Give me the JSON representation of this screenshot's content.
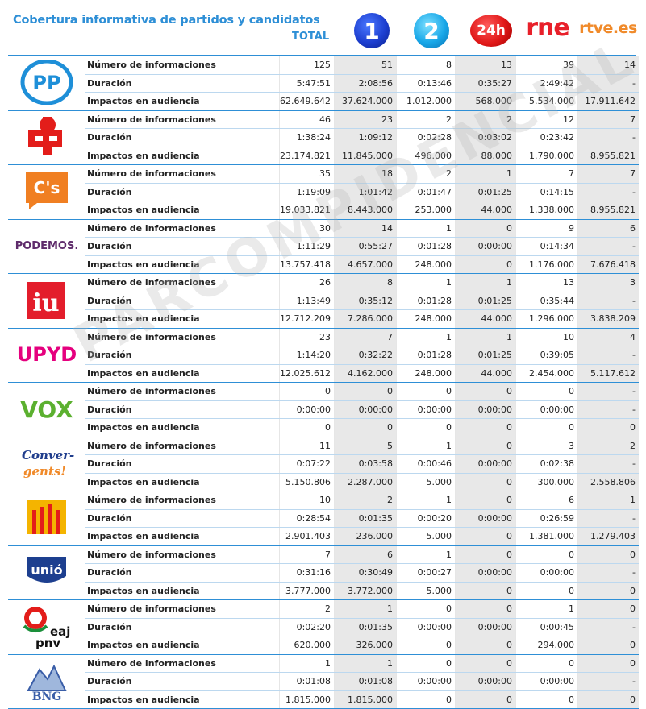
{
  "title": "Cobertura informativa de partidos y candidatos",
  "columns": {
    "total": "TOTAL",
    "ch1": "1",
    "ch2": "2",
    "ch24": "24h",
    "rne": "rne",
    "rtve": "rtve.es"
  },
  "row_labels": [
    "Número de informaciones",
    "Duración",
    "Impactos en audiencia"
  ],
  "watermark": "PARCOMPIDENCIAL",
  "parties": [
    {
      "logo": "pp-logo",
      "logo_text": "PP",
      "rows": [
        [
          "125",
          "51",
          "8",
          "13",
          "39",
          "14"
        ],
        [
          "5:47:51",
          "2:08:56",
          "0:13:46",
          "0:35:27",
          "2:49:42",
          "-"
        ],
        [
          "62.649.642",
          "37.624.000",
          "1.012.000",
          "568.000",
          "5.534.000",
          "17.911.642"
        ]
      ]
    },
    {
      "logo": "psoe-logo",
      "logo_text": "",
      "rows": [
        [
          "46",
          "23",
          "2",
          "2",
          "12",
          "7"
        ],
        [
          "1:38:24",
          "1:09:12",
          "0:02:28",
          "0:03:02",
          "0:23:42",
          "-"
        ],
        [
          "23.174.821",
          "11.845.000",
          "496.000",
          "88.000",
          "1.790.000",
          "8.955.821"
        ]
      ]
    },
    {
      "logo": "cs-logo",
      "logo_text": "C's",
      "rows": [
        [
          "35",
          "18",
          "2",
          "1",
          "7",
          "7"
        ],
        [
          "1:19:09",
          "1:01:42",
          "0:01:47",
          "0:01:25",
          "0:14:15",
          "-"
        ],
        [
          "19.033.821",
          "8.443.000",
          "253.000",
          "44.000",
          "1.338.000",
          "8.955.821"
        ]
      ]
    },
    {
      "logo": "podemos-logo",
      "logo_text": "PODEMOS.",
      "rows": [
        [
          "30",
          "14",
          "1",
          "0",
          "9",
          "6"
        ],
        [
          "1:11:29",
          "0:55:27",
          "0:01:28",
          "0:00:00",
          "0:14:34",
          "-"
        ],
        [
          "13.757.418",
          "4.657.000",
          "248.000",
          "0",
          "1.176.000",
          "7.676.418"
        ]
      ]
    },
    {
      "logo": "iu-logo",
      "logo_text": "iu",
      "rows": [
        [
          "26",
          "8",
          "1",
          "1",
          "13",
          "3"
        ],
        [
          "1:13:49",
          "0:35:12",
          "0:01:28",
          "0:01:25",
          "0:35:44",
          "-"
        ],
        [
          "12.712.209",
          "7.286.000",
          "248.000",
          "44.000",
          "1.296.000",
          "3.838.209"
        ]
      ]
    },
    {
      "logo": "upyd-logo",
      "logo_text": "UPYD",
      "rows": [
        [
          "23",
          "7",
          "1",
          "1",
          "10",
          "4"
        ],
        [
          "1:14:20",
          "0:32:22",
          "0:01:28",
          "0:01:25",
          "0:39:05",
          "-"
        ],
        [
          "12.025.612",
          "4.162.000",
          "248.000",
          "44.000",
          "2.454.000",
          "5.117.612"
        ]
      ]
    },
    {
      "logo": "vox-logo",
      "logo_text": "VOX",
      "rows": [
        [
          "0",
          "0",
          "0",
          "0",
          "0",
          "-"
        ],
        [
          "0:00:00",
          "0:00:00",
          "0:00:00",
          "0:00:00",
          "0:00:00",
          "-"
        ],
        [
          "0",
          "0",
          "0",
          "0",
          "0",
          "0"
        ]
      ]
    },
    {
      "logo": "convergents-logo",
      "logo_text": "Conver-gents!",
      "rows": [
        [
          "11",
          "5",
          "1",
          "0",
          "3",
          "2"
        ],
        [
          "0:07:22",
          "0:03:58",
          "0:00:46",
          "0:00:00",
          "0:02:38",
          "-"
        ],
        [
          "5.150.806",
          "2.287.000",
          "5.000",
          "0",
          "300.000",
          "2.558.806"
        ]
      ]
    },
    {
      "logo": "erc-logo",
      "logo_text": "",
      "rows": [
        [
          "10",
          "2",
          "1",
          "0",
          "6",
          "1"
        ],
        [
          "0:28:54",
          "0:01:35",
          "0:00:20",
          "0:00:00",
          "0:26:59",
          "-"
        ],
        [
          "2.901.403",
          "236.000",
          "5.000",
          "0",
          "1.381.000",
          "1.279.403"
        ]
      ]
    },
    {
      "logo": "unio-logo",
      "logo_text": "unió",
      "rows": [
        [
          "7",
          "6",
          "1",
          "0",
          "0",
          "0"
        ],
        [
          "0:31:16",
          "0:30:49",
          "0:00:27",
          "0:00:00",
          "0:00:00",
          "-"
        ],
        [
          "3.777.000",
          "3.772.000",
          "5.000",
          "0",
          "0",
          "0"
        ]
      ]
    },
    {
      "logo": "pnv-logo",
      "logo_text": "eaj pnv",
      "rows": [
        [
          "2",
          "1",
          "0",
          "0",
          "1",
          "0"
        ],
        [
          "0:02:20",
          "0:01:35",
          "0:00:00",
          "0:00:00",
          "0:00:45",
          "-"
        ],
        [
          "620.000",
          "326.000",
          "0",
          "0",
          "294.000",
          "0"
        ]
      ]
    },
    {
      "logo": "bng-logo",
      "logo_text": "BNG",
      "rows": [
        [
          "1",
          "1",
          "0",
          "0",
          "0",
          "0"
        ],
        [
          "0:01:08",
          "0:01:08",
          "0:00:00",
          "0:00:00",
          "0:00:00",
          "-"
        ],
        [
          "1.815.000",
          "1.815.000",
          "0",
          "0",
          "0",
          "0"
        ]
      ]
    }
  ]
}
